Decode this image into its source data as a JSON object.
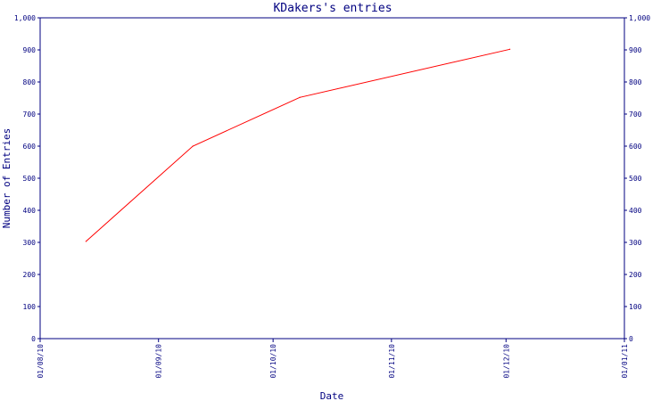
{
  "chart_data": {
    "type": "line",
    "title": "KDakers's entries",
    "xlabel": "Date",
    "ylabel": "Number of Entries",
    "x_tick_labels": [
      "01/08/10",
      "01/09/10",
      "01/10/10",
      "01/11/10",
      "01/12/10",
      "01/01/11"
    ],
    "y_tick_labels": [
      "0",
      "100",
      "200",
      "300",
      "400",
      "500",
      "600",
      "700",
      "800",
      "900",
      "1,000"
    ],
    "ylim": [
      0,
      1000
    ],
    "xlim": [
      "2010-08-01",
      "2011-01-01"
    ],
    "grid": false,
    "series": [
      {
        "points": [
          {
            "x": "2010-08-13",
            "y": 303
          },
          {
            "x": "2010-09-10",
            "y": 600
          },
          {
            "x": "2010-10-08",
            "y": 752
          },
          {
            "x": "2010-12-02",
            "y": 902
          }
        ]
      }
    ],
    "colors": {
      "axis": "#000080",
      "text": "#000080",
      "line": "#ff0000"
    }
  }
}
